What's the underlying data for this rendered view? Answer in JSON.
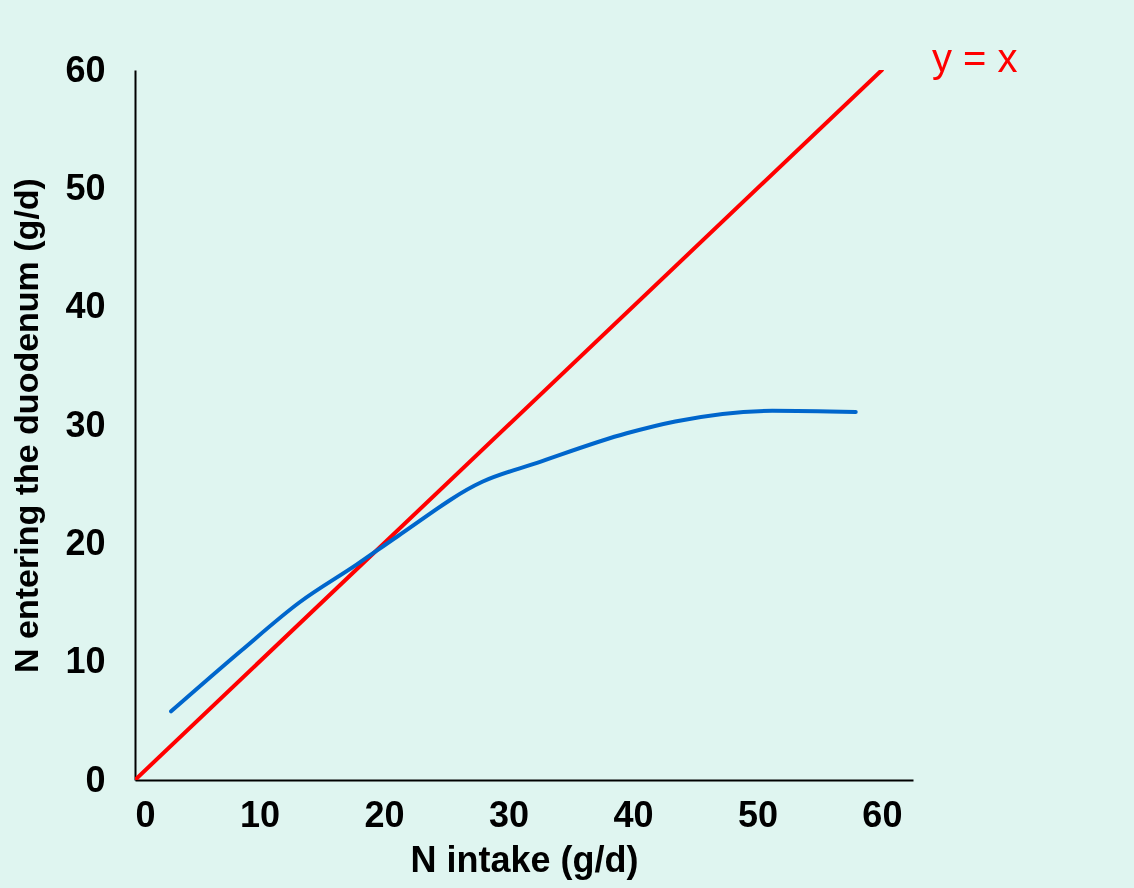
{
  "chart_data": {
    "type": "line",
    "xlabel": "N intake (g/d)",
    "ylabel": "N entering the duodenum (g/d)",
    "xlim": [
      0,
      62.5
    ],
    "xticks": [
      0,
      10,
      20,
      30,
      40,
      50,
      60
    ],
    "ylim": [
      0,
      60
    ],
    "yticks": [
      0,
      10,
      20,
      30,
      40,
      50,
      60
    ],
    "grid": false,
    "marker": "none",
    "line_style": "solid",
    "series": [
      {
        "color": "#ff0000",
        "x": [
          0,
          60
        ],
        "values": [
          0,
          60
        ]
      },
      {
        "color": "#0066cc",
        "x": [
          2.9,
          8.5,
          13.2,
          17.8,
          21.1,
          27.9,
          32.3,
          39.5,
          43.4,
          51.2,
          57.9
        ],
        "values": [
          5.8,
          10.9,
          15.0,
          18.2,
          20.6,
          25.2,
          26.8,
          29.3,
          30.3,
          31.2,
          31.1
        ]
      }
    ],
    "annotations": [
      {
        "text": "y = x",
        "x": 60,
        "y": 60
      }
    ]
  }
}
